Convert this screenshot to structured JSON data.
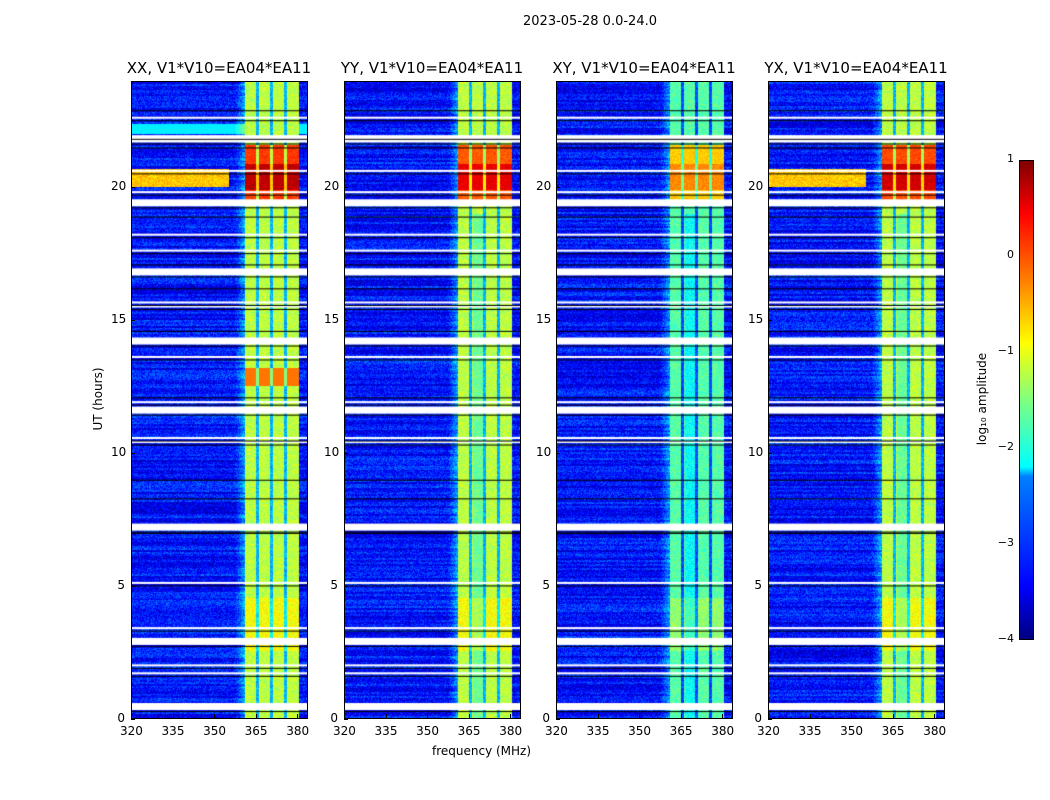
{
  "chart_data": {
    "type": "heatmap",
    "title": "2023-05-28 0.0-24.0",
    "xlabel": "frequency (MHz)",
    "ylabel": "UT (hours)",
    "xlim": [
      320,
      384
    ],
    "ylim": [
      0,
      24
    ],
    "xticks": [
      "320",
      "335",
      "350",
      "365",
      "380"
    ],
    "yticks": [
      "0",
      "5",
      "10",
      "15",
      "20"
    ],
    "panels": [
      {
        "title": "XX, V1*V10=EA04*EA11",
        "strength": 1.0
      },
      {
        "title": "YY, V1*V10=EA04*EA11",
        "strength": 0.9
      },
      {
        "title": "XY, V1*V10=EA04*EA11",
        "strength": 0.55
      },
      {
        "title": "YX, V1*V10=EA04*EA11",
        "strength": 0.95
      }
    ],
    "band_MHz": [
      360.5,
      380
    ],
    "subband_edges_MHz": [
      365.1,
      370.1,
      375.2
    ],
    "flagged_hours": [
      0.45,
      1.7,
      2.0,
      2.9,
      3.4,
      5.1,
      7.2,
      10.4,
      10.55,
      11.6,
      11.9,
      13.6,
      14.2,
      15.5,
      15.65,
      16.8,
      17.6,
      18.2,
      19.4,
      19.8,
      20.6,
      21.8,
      21.9,
      22.6
    ],
    "bright_interval_hours": [
      19.3,
      21.6
    ],
    "colorbar": {
      "label": "log₁₀ amplitude",
      "range": [
        -4,
        1
      ],
      "ticks": [
        "1",
        "0",
        "−1",
        "−2",
        "−3",
        "−4"
      ],
      "colormap": "jet"
    }
  }
}
